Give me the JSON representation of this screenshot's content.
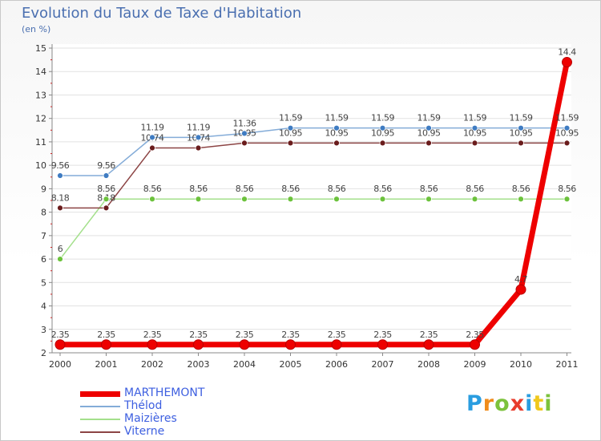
{
  "chart_data": {
    "type": "line",
    "title": "Evolution du Taux de Taxe d'Habitation",
    "subtitle": "(en %)",
    "x": [
      "2000",
      "2001",
      "2002",
      "2003",
      "2004",
      "2005",
      "2006",
      "2007",
      "2008",
      "2009",
      "2010",
      "2011"
    ],
    "ylim": [
      2,
      15
    ],
    "yticks": [
      2,
      3,
      4,
      5,
      6,
      7,
      8,
      9,
      10,
      11,
      12,
      13,
      14,
      15
    ],
    "series": [
      {
        "name": "MARTHEMONT",
        "color": "#ee0000",
        "marker": "#ee0000",
        "width": 7,
        "values": [
          2.35,
          2.35,
          2.35,
          2.35,
          2.35,
          2.35,
          2.35,
          2.35,
          2.35,
          2.35,
          4.7,
          14.4
        ],
        "labels": [
          "2.35",
          "2.35",
          "2.35",
          "2.35",
          "2.35",
          "2.35",
          "2.35",
          "2.35",
          "2.35",
          "2.35",
          "4.7",
          "14.4"
        ]
      },
      {
        "name": "Thélod",
        "color": "#84acd8",
        "marker": "#3f7cc2",
        "width": 1.5,
        "values": [
          9.56,
          9.56,
          11.19,
          11.19,
          11.36,
          11.59,
          11.59,
          11.59,
          11.59,
          11.59,
          11.59,
          11.59
        ],
        "labels": [
          "9.56",
          "9.56",
          "11.19",
          "11.19",
          "11.36",
          "11.59",
          "11.59",
          "11.59",
          "11.59",
          "11.59",
          "11.59",
          "11.59"
        ]
      },
      {
        "name": "Maizières",
        "color": "#a4e08c",
        "marker": "#6cc23c",
        "width": 1.5,
        "values": [
          6,
          8.56,
          8.56,
          8.56,
          8.56,
          8.56,
          8.56,
          8.56,
          8.56,
          8.56,
          8.56,
          8.56
        ],
        "labels": [
          "6",
          "8.56",
          "8.56",
          "8.56",
          "8.56",
          "8.56",
          "8.56",
          "8.56",
          "8.56",
          "8.56",
          "8.56",
          "8.56"
        ]
      },
      {
        "name": "Viterne",
        "color": "#8c4444",
        "marker": "#6a1c1c",
        "width": 1.5,
        "values": [
          8.18,
          8.18,
          10.74,
          10.74,
          10.95,
          10.95,
          10.95,
          10.95,
          10.95,
          10.95,
          10.95,
          10.95
        ],
        "labels": [
          "8.18",
          "8.18",
          "10.74",
          "10.74",
          "10.95",
          "10.95",
          "10.95",
          "10.95",
          "10.95",
          "10.95",
          "10.95",
          "10.95"
        ]
      }
    ],
    "legend": [
      "MARTHEMONT",
      "Thélod",
      "Maizières",
      "Viterne"
    ],
    "legend_position": "bottom-left"
  },
  "logo": {
    "letters": [
      "P",
      "r",
      "o",
      "x",
      "i",
      "t",
      "i"
    ],
    "colors": [
      "#2a9de0",
      "#f08c1c",
      "#7cc23c",
      "#e83c2c",
      "#2a9de0",
      "#f0c81c",
      "#7cc23c"
    ]
  }
}
